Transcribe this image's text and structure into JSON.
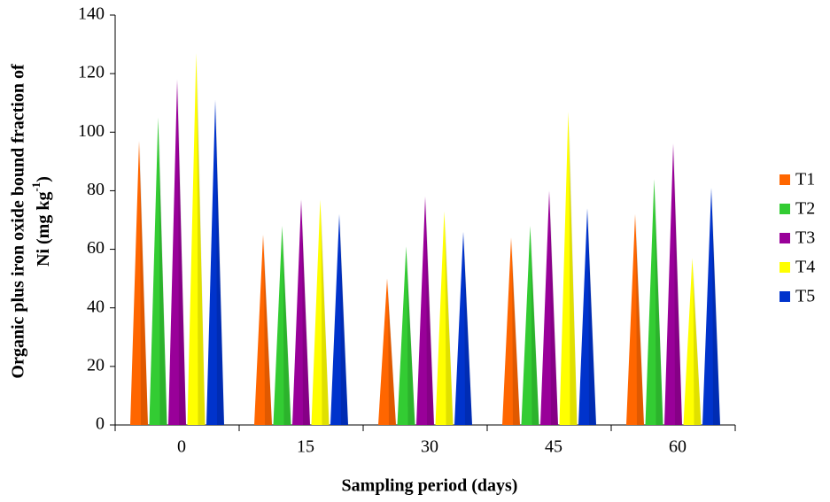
{
  "chart_data": {
    "type": "bar",
    "x_label": "Sampling period (days)",
    "y_label": {
      "line1": "Organic plus iron oxide bound fraction of",
      "line2": "Ni (mg kg",
      "superscript": "-1",
      "line2_end": ")"
    },
    "categories": [
      "0",
      "15",
      "30",
      "45",
      "60"
    ],
    "series": [
      {
        "name": "T1",
        "color": "#ff6600",
        "values": [
          97,
          65,
          50,
          64,
          72
        ]
      },
      {
        "name": "T2",
        "color": "#33cc33",
        "values": [
          105,
          68,
          61,
          68,
          84
        ]
      },
      {
        "name": "T3",
        "color": "#990099",
        "values": [
          118,
          77,
          78,
          80,
          96
        ]
      },
      {
        "name": "T4",
        "color": "#ffff00",
        "values": [
          127,
          77,
          73,
          107,
          57
        ]
      },
      {
        "name": "T5",
        "color": "#0033cc",
        "values": [
          111,
          72,
          66,
          74,
          81
        ]
      }
    ],
    "ylim": [
      0,
      140
    ],
    "yticks": [
      0,
      20,
      40,
      60,
      80,
      100,
      120,
      140
    ],
    "legend": "right"
  }
}
